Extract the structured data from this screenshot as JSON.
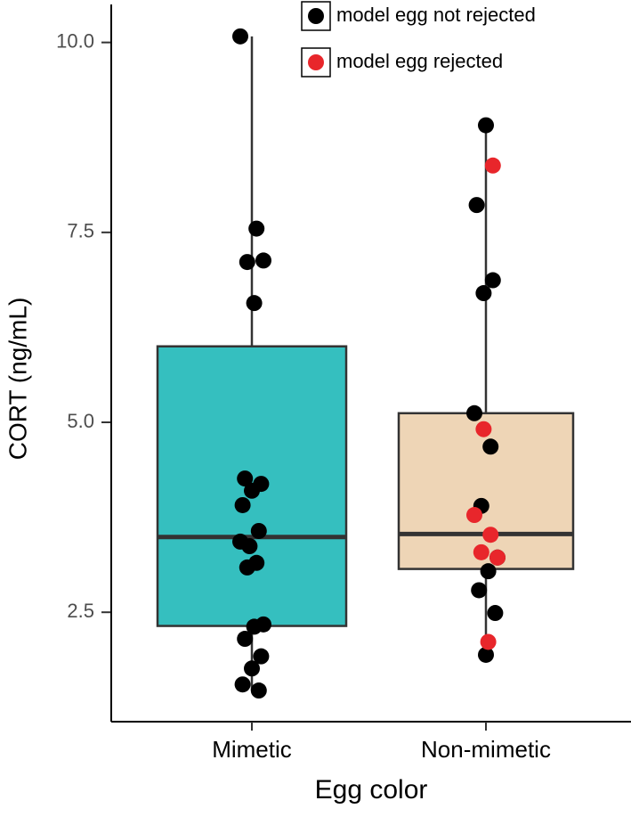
{
  "chart_data": {
    "type": "box",
    "xlabel": "Egg color",
    "ylabel": "CORT (ng/mL)",
    "categories": [
      "Mimetic",
      "Non-mimetic"
    ],
    "boxes": [
      {
        "whisker_low": 1.47,
        "q1": 2.32,
        "median": 3.49,
        "q3": 6.0,
        "whisker_high": 10.08,
        "color": "#35bfbf"
      },
      {
        "whisker_low": 1.94,
        "q1": 3.07,
        "median": 3.53,
        "q3": 5.12,
        "whisker_high": 8.91,
        "color": "#eed5b6"
      }
    ],
    "series": [
      {
        "name": "model egg not rejected",
        "color": "#000000",
        "values": [
          [
            10.08,
            7.55,
            7.11,
            7.13,
            6.57,
            4.26,
            4.19,
            4.1,
            3.91,
            3.57,
            3.37,
            3.43,
            3.15,
            3.09,
            2.34,
            2.31,
            2.15,
            1.92,
            1.76,
            1.55,
            1.47
          ],
          [
            8.91,
            7.86,
            6.87,
            6.7,
            5.12,
            4.68,
            3.9,
            3.22,
            3.04,
            2.79,
            2.49,
            1.94
          ]
        ]
      },
      {
        "name": "model egg rejected",
        "color": "#e8262b",
        "values": [
          [],
          [
            8.38,
            4.91,
            3.78,
            3.52,
            3.29,
            3.22,
            2.11
          ]
        ]
      }
    ],
    "ylim": [
      1.06,
      10.5
    ],
    "yticks": [
      {
        "value": 2.5,
        "label": "2.5"
      },
      {
        "value": 5,
        "label": "5.0"
      },
      {
        "value": 7.5,
        "label": "7.5"
      },
      {
        "value": 10,
        "label": "10.0"
      }
    ],
    "legend": "top-right"
  }
}
